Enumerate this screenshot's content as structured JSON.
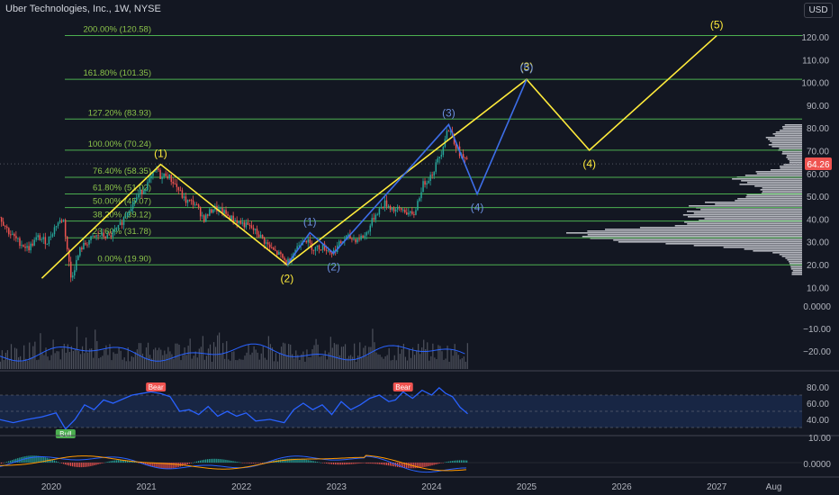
{
  "header": {
    "title": "Uber Technologies, Inc., 1W, NYSE",
    "currency": "USD"
  },
  "colors": {
    "background": "#131722",
    "fib_line": "#4caf50",
    "fib_text": "#8bc34a",
    "wave_yellow": "#ffeb3b",
    "wave_blue": "#3d6ee8",
    "wave_label_blue": "#6b8fe0",
    "candle_up": "#26a69a",
    "candle_down": "#ef5350",
    "rsi_line": "#2962ff",
    "volume_bar": "#5d606b",
    "price_tag": "#ef5350",
    "bear_tag": "#ef5350",
    "bull_tag": "#4caf50"
  },
  "chart_data": {
    "type": "line",
    "title": "Uber Technologies, Inc., 1W, NYSE",
    "ylim": [
      10,
      125
    ],
    "price_axis_ticks": [
      "120.00",
      "110.00",
      "100.00",
      "90.00",
      "80.00",
      "70.00",
      "60.00",
      "50.00",
      "40.00",
      "30.00",
      "20.00",
      "10.00"
    ],
    "price_axis_values": [
      120,
      110,
      100,
      90,
      80,
      70,
      60,
      50,
      40,
      30,
      20,
      10
    ],
    "current_price": "64.26",
    "x_axis_labels": [
      "2020",
      "2021",
      "2022",
      "2023",
      "2024",
      "2025",
      "2026",
      "2027",
      "Aug"
    ],
    "x_axis_years": [
      2020,
      2021,
      2022,
      2023,
      2024,
      2025,
      2026,
      2027,
      2027.6
    ],
    "fib_levels": [
      {
        "label": "200.00% (120.58)",
        "value": 120.58
      },
      {
        "label": "161.80% (101.35)",
        "value": 101.35
      },
      {
        "label": "127.20% (83.93)",
        "value": 83.93
      },
      {
        "label": "100.00% (70.24)",
        "value": 70.24
      },
      {
        "label": "76.40% (58.35)",
        "value": 58.35
      },
      {
        "label": "61.80% (51.02)",
        "value": 51.02
      },
      {
        "label": "50.00% (45.07)",
        "value": 45.07
      },
      {
        "label": "38.20% (39.12)",
        "value": 39.12
      },
      {
        "label": "23.60% (31.78)",
        "value": 31.78
      },
      {
        "label": "0.00% (19.90)",
        "value": 19.9
      }
    ],
    "price_series": [
      [
        2019.45,
        41
      ],
      [
        2019.55,
        34
      ],
      [
        2019.65,
        30
      ],
      [
        2019.75,
        27
      ],
      [
        2019.85,
        32
      ],
      [
        2019.95,
        30
      ],
      [
        2020.05,
        38
      ],
      [
        2020.12,
        40
      ],
      [
        2020.2,
        14
      ],
      [
        2020.3,
        27
      ],
      [
        2020.4,
        31
      ],
      [
        2020.5,
        33
      ],
      [
        2020.6,
        32
      ],
      [
        2020.7,
        36
      ],
      [
        2020.8,
        44
      ],
      [
        2020.9,
        50
      ],
      [
        2021.0,
        55
      ],
      [
        2021.1,
        62
      ],
      [
        2021.15,
        58
      ],
      [
        2021.2,
        60
      ],
      [
        2021.3,
        55
      ],
      [
        2021.4,
        48
      ],
      [
        2021.5,
        47
      ],
      [
        2021.6,
        40
      ],
      [
        2021.7,
        45
      ],
      [
        2021.8,
        43
      ],
      [
        2021.9,
        40
      ],
      [
        2022.0,
        38
      ],
      [
        2022.1,
        36
      ],
      [
        2022.2,
        32
      ],
      [
        2022.3,
        27
      ],
      [
        2022.4,
        24
      ],
      [
        2022.47,
        20.5
      ],
      [
        2022.55,
        26
      ],
      [
        2022.65,
        32
      ],
      [
        2022.75,
        27
      ],
      [
        2022.85,
        28
      ],
      [
        2022.95,
        25
      ],
      [
        2023.0,
        28
      ],
      [
        2023.1,
        32
      ],
      [
        2023.2,
        31
      ],
      [
        2023.3,
        33
      ],
      [
        2023.4,
        42
      ],
      [
        2023.5,
        47
      ],
      [
        2023.6,
        44
      ],
      [
        2023.7,
        44
      ],
      [
        2023.8,
        41
      ],
      [
        2023.9,
        55
      ],
      [
        2024.0,
        60
      ],
      [
        2024.1,
        70
      ],
      [
        2024.15,
        79
      ],
      [
        2024.2,
        78
      ],
      [
        2024.25,
        72
      ],
      [
        2024.3,
        68
      ],
      [
        2024.38,
        64.26
      ]
    ],
    "wave_count_primary": [
      {
        "label": "(1)",
        "year": 2021.15,
        "value": 64
      },
      {
        "label": "(2)",
        "year": 2022.48,
        "value": 19.9
      },
      {
        "label": "(3)",
        "year": 2025.0,
        "value": 101.35
      },
      {
        "label": "(4)",
        "year": 2025.66,
        "value": 70.24
      },
      {
        "label": "(5)",
        "year": 2027.0,
        "value": 120.58
      }
    ],
    "wave_count_secondary": [
      {
        "label": "(1)",
        "year": 2022.72,
        "value": 34
      },
      {
        "label": "(2)",
        "year": 2022.97,
        "value": 25
      },
      {
        "label": "(3)",
        "year": 2024.18,
        "value": 81.5
      },
      {
        "label": "(4)",
        "year": 2024.48,
        "value": 51
      },
      {
        "label": "(5)",
        "year": 2025.0,
        "value": 101.35
      }
    ],
    "volume_ticks": [
      "0.0000",
      "−10.00",
      "−20.00"
    ],
    "rsi": {
      "ticks": [
        "80.00",
        "60.00",
        "40.00"
      ],
      "tick_values": [
        80,
        60,
        40
      ],
      "ylim": [
        30,
        85
      ],
      "band": [
        30,
        70
      ],
      "series": [
        [
          2019.45,
          40
        ],
        [
          2019.6,
          36
        ],
        [
          2019.75,
          40
        ],
        [
          2019.9,
          43
        ],
        [
          2020.05,
          48
        ],
        [
          2020.15,
          28
        ],
        [
          2020.25,
          40
        ],
        [
          2020.35,
          58
        ],
        [
          2020.45,
          52
        ],
        [
          2020.55,
          64
        ],
        [
          2020.65,
          60
        ],
        [
          2020.75,
          65
        ],
        [
          2020.85,
          70
        ],
        [
          2020.95,
          72
        ],
        [
          2021.05,
          74
        ],
        [
          2021.15,
          72
        ],
        [
          2021.25,
          68
        ],
        [
          2021.35,
          50
        ],
        [
          2021.45,
          52
        ],
        [
          2021.55,
          46
        ],
        [
          2021.65,
          56
        ],
        [
          2021.75,
          44
        ],
        [
          2021.85,
          50
        ],
        [
          2021.95,
          44
        ],
        [
          2022.05,
          48
        ],
        [
          2022.15,
          38
        ],
        [
          2022.3,
          40
        ],
        [
          2022.45,
          36
        ],
        [
          2022.55,
          52
        ],
        [
          2022.65,
          60
        ],
        [
          2022.75,
          52
        ],
        [
          2022.85,
          58
        ],
        [
          2022.95,
          46
        ],
        [
          2023.05,
          62
        ],
        [
          2023.15,
          52
        ],
        [
          2023.25,
          58
        ],
        [
          2023.35,
          66
        ],
        [
          2023.45,
          70
        ],
        [
          2023.55,
          62
        ],
        [
          2023.62,
          64
        ],
        [
          2023.7,
          74
        ],
        [
          2023.8,
          66
        ],
        [
          2023.9,
          76
        ],
        [
          2024.0,
          70
        ],
        [
          2024.08,
          79
        ],
        [
          2024.15,
          72
        ],
        [
          2024.22,
          68
        ],
        [
          2024.3,
          55
        ],
        [
          2024.38,
          47
        ]
      ],
      "tags": [
        {
          "label": "Bear",
          "year": 2021.1
        },
        {
          "label": "Bear",
          "year": 2023.7
        },
        {
          "label": "Bull",
          "year": 2020.15
        }
      ]
    },
    "macd_ticks": [
      "10.00",
      "0.0000"
    ]
  }
}
